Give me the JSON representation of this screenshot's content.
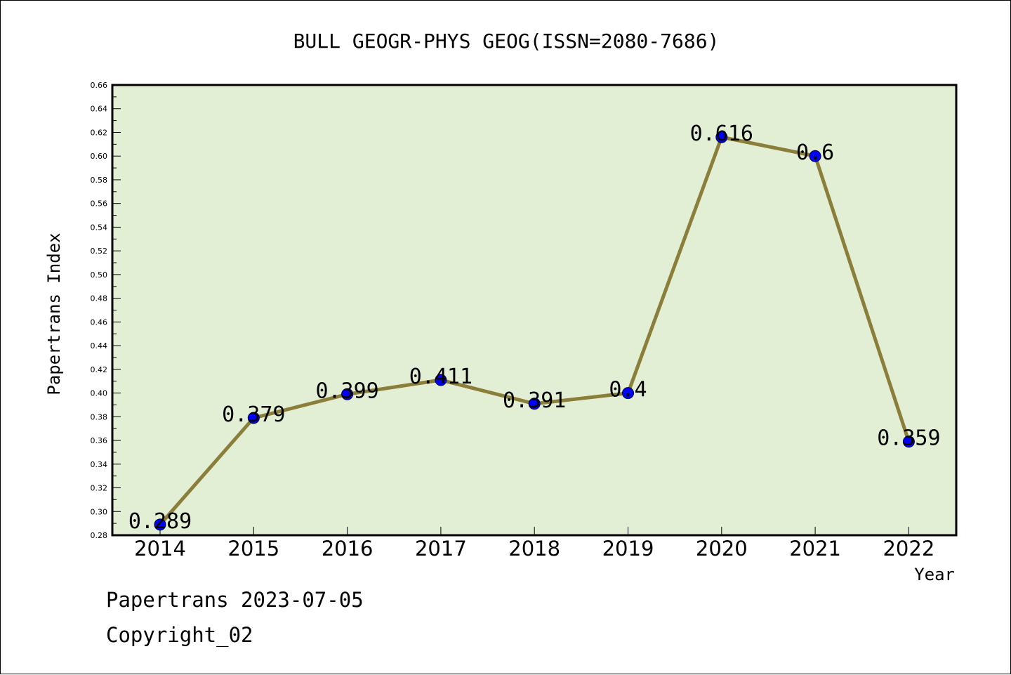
{
  "chart_data": {
    "type": "line",
    "title": "BULL GEOGR-PHYS GEOG(ISSN=2080-7686)",
    "xlabel": "Year",
    "ylabel": "Papertrans Index",
    "x": [
      "2014",
      "2015",
      "2016",
      "2017",
      "2018",
      "2019",
      "2020",
      "2021",
      "2022"
    ],
    "series": [
      {
        "values": [
          0.289,
          0.379,
          0.399,
          0.411,
          0.391,
          0.4,
          0.616,
          0.6,
          0.359
        ],
        "labels": [
          "0.289",
          "0.379",
          "0.399",
          "0.411",
          "0.391",
          "0.4",
          "0.616",
          "0.6",
          "0.359"
        ]
      }
    ],
    "ylim": [
      0.28,
      0.66
    ],
    "yticks": [
      "0.28",
      "0.30",
      "0.32",
      "0.34",
      "0.36",
      "0.38",
      "0.40",
      "0.42",
      "0.44",
      "0.46",
      "0.48",
      "0.50",
      "0.52",
      "0.54",
      "0.56",
      "0.58",
      "0.60",
      "0.62",
      "0.64",
      "0.66"
    ],
    "grid": false,
    "colors": {
      "plot_background": "#e2efd4",
      "line": "#8b7d3a",
      "marker": "#0000ff"
    }
  },
  "footer": {
    "date_text": "Papertrans 2023-07-05",
    "copyright_text": "Copyright_02"
  }
}
